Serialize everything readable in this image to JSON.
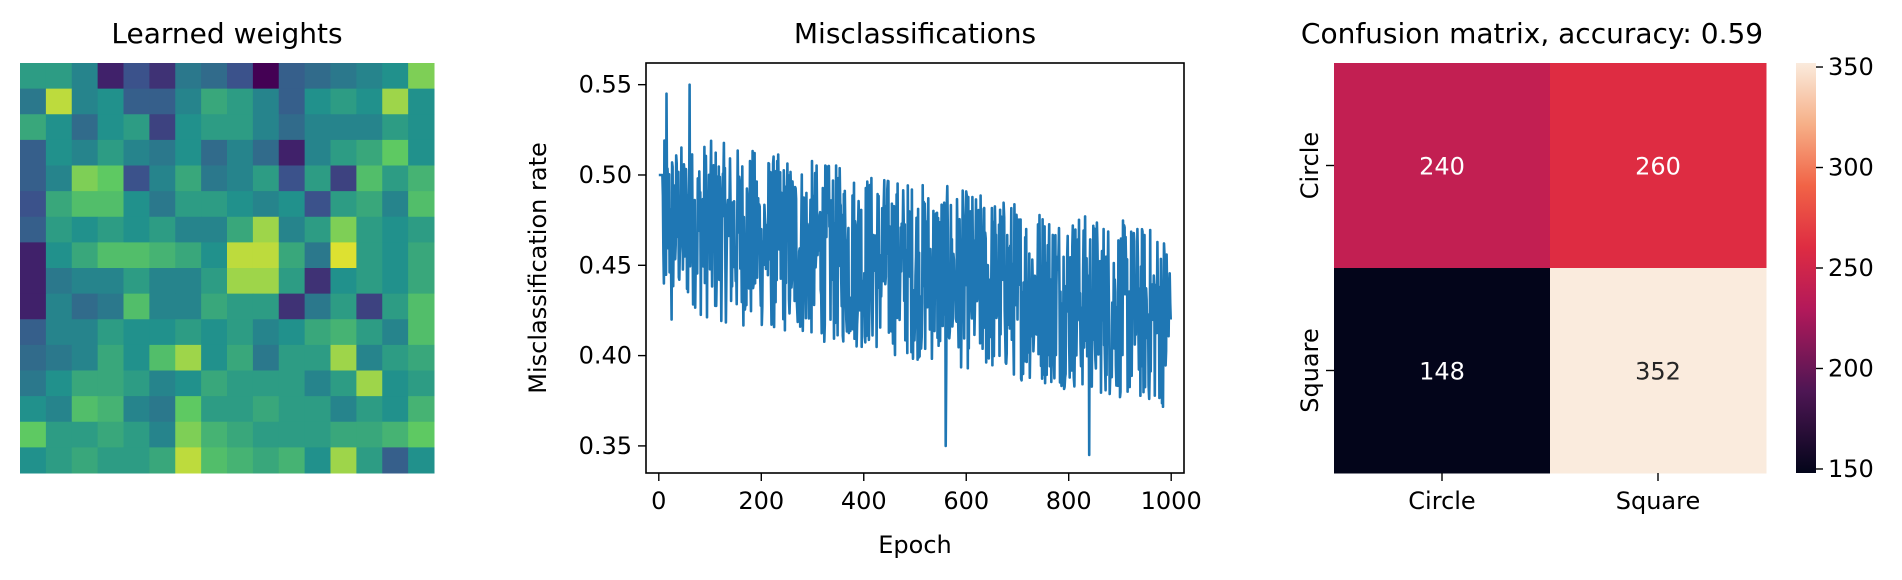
{
  "chart_data": [
    {
      "type": "heatmap",
      "title": "Learned weights",
      "colormap": "viridis",
      "axes_visible": false,
      "grid_size": [
        16,
        16
      ],
      "values": [
        [
          0.55,
          0.55,
          0.45,
          0.1,
          0.25,
          0.15,
          0.4,
          0.35,
          0.25,
          0.0,
          0.3,
          0.35,
          0.4,
          0.45,
          0.5,
          0.8
        ],
        [
          0.4,
          0.9,
          0.45,
          0.5,
          0.3,
          0.3,
          0.45,
          0.6,
          0.55,
          0.45,
          0.3,
          0.5,
          0.55,
          0.5,
          0.85,
          0.5
        ],
        [
          0.6,
          0.5,
          0.35,
          0.5,
          0.55,
          0.2,
          0.5,
          0.55,
          0.55,
          0.45,
          0.35,
          0.45,
          0.45,
          0.45,
          0.55,
          0.5
        ],
        [
          0.3,
          0.5,
          0.45,
          0.55,
          0.45,
          0.4,
          0.5,
          0.35,
          0.45,
          0.35,
          0.1,
          0.45,
          0.55,
          0.6,
          0.75,
          0.5
        ],
        [
          0.3,
          0.45,
          0.8,
          0.75,
          0.25,
          0.45,
          0.6,
          0.4,
          0.45,
          0.55,
          0.25,
          0.55,
          0.2,
          0.7,
          0.55,
          0.65
        ],
        [
          0.25,
          0.6,
          0.7,
          0.7,
          0.5,
          0.4,
          0.55,
          0.55,
          0.5,
          0.45,
          0.5,
          0.25,
          0.55,
          0.6,
          0.45,
          0.7
        ],
        [
          0.3,
          0.55,
          0.5,
          0.55,
          0.5,
          0.55,
          0.45,
          0.45,
          0.6,
          0.85,
          0.45,
          0.55,
          0.8,
          0.55,
          0.5,
          0.55
        ],
        [
          0.1,
          0.5,
          0.6,
          0.7,
          0.7,
          0.65,
          0.6,
          0.5,
          0.9,
          0.9,
          0.6,
          0.4,
          0.95,
          0.55,
          0.5,
          0.6
        ],
        [
          0.1,
          0.4,
          0.45,
          0.45,
          0.55,
          0.45,
          0.45,
          0.55,
          0.85,
          0.85,
          0.55,
          0.15,
          0.5,
          0.55,
          0.5,
          0.6
        ],
        [
          0.1,
          0.45,
          0.35,
          0.4,
          0.7,
          0.45,
          0.45,
          0.6,
          0.55,
          0.55,
          0.15,
          0.4,
          0.55,
          0.2,
          0.55,
          0.7
        ],
        [
          0.3,
          0.45,
          0.45,
          0.55,
          0.5,
          0.5,
          0.55,
          0.5,
          0.55,
          0.45,
          0.5,
          0.6,
          0.65,
          0.55,
          0.45,
          0.7
        ],
        [
          0.35,
          0.4,
          0.45,
          0.6,
          0.5,
          0.7,
          0.85,
          0.5,
          0.6,
          0.4,
          0.55,
          0.55,
          0.85,
          0.45,
          0.55,
          0.6
        ],
        [
          0.4,
          0.5,
          0.6,
          0.6,
          0.55,
          0.45,
          0.5,
          0.6,
          0.55,
          0.55,
          0.55,
          0.45,
          0.55,
          0.85,
          0.5,
          0.55
        ],
        [
          0.5,
          0.45,
          0.7,
          0.65,
          0.45,
          0.4,
          0.75,
          0.55,
          0.55,
          0.6,
          0.55,
          0.55,
          0.45,
          0.55,
          0.5,
          0.65
        ],
        [
          0.75,
          0.55,
          0.55,
          0.6,
          0.55,
          0.45,
          0.8,
          0.65,
          0.6,
          0.55,
          0.55,
          0.55,
          0.6,
          0.6,
          0.65,
          0.75
        ],
        [
          0.5,
          0.55,
          0.6,
          0.55,
          0.55,
          0.6,
          0.9,
          0.7,
          0.65,
          0.6,
          0.65,
          0.5,
          0.85,
          0.55,
          0.3,
          0.5
        ]
      ]
    },
    {
      "type": "line",
      "title": "Misclassifications",
      "xlabel": "Epoch",
      "ylabel": "Misclassification rate",
      "xlim": [
        -25,
        1025
      ],
      "ylim": [
        0.335,
        0.562
      ],
      "xticks": [
        "0",
        "200",
        "400",
        "600",
        "800",
        "1000"
      ],
      "yticks": [
        "0.35",
        "0.40",
        "0.45",
        "0.50",
        "0.55"
      ],
      "color": "#1f77b4",
      "epochs": 1000,
      "series_notes": "dense noisy series, 0.35–0.55 range, downward trend",
      "keypoints": [
        {
          "x": 0,
          "y": 0.5
        },
        {
          "x": 10,
          "y": 0.44
        },
        {
          "x": 15,
          "y": 0.545
        },
        {
          "x": 25,
          "y": 0.42
        },
        {
          "x": 60,
          "y": 0.55
        },
        {
          "x": 200,
          "y": 0.47
        },
        {
          "x": 300,
          "y": 0.44
        },
        {
          "x": 400,
          "y": 0.43
        },
        {
          "x": 500,
          "y": 0.42
        },
        {
          "x": 560,
          "y": 0.35
        },
        {
          "x": 700,
          "y": 0.42
        },
        {
          "x": 840,
          "y": 0.345
        },
        {
          "x": 1000,
          "y": 0.42
        }
      ]
    },
    {
      "type": "heatmap",
      "title": "Confusion matrix, accuracy: 0.59",
      "colormap": "rocket",
      "x_categories": [
        "Circle",
        "Square"
      ],
      "y_categories": [
        "Circle",
        "Square"
      ],
      "values": [
        [
          240,
          260
        ],
        [
          148,
          352
        ]
      ],
      "colorbar": {
        "min": 148,
        "max": 352,
        "ticks": [
          "150",
          "200",
          "250",
          "300",
          "350"
        ]
      }
    }
  ]
}
